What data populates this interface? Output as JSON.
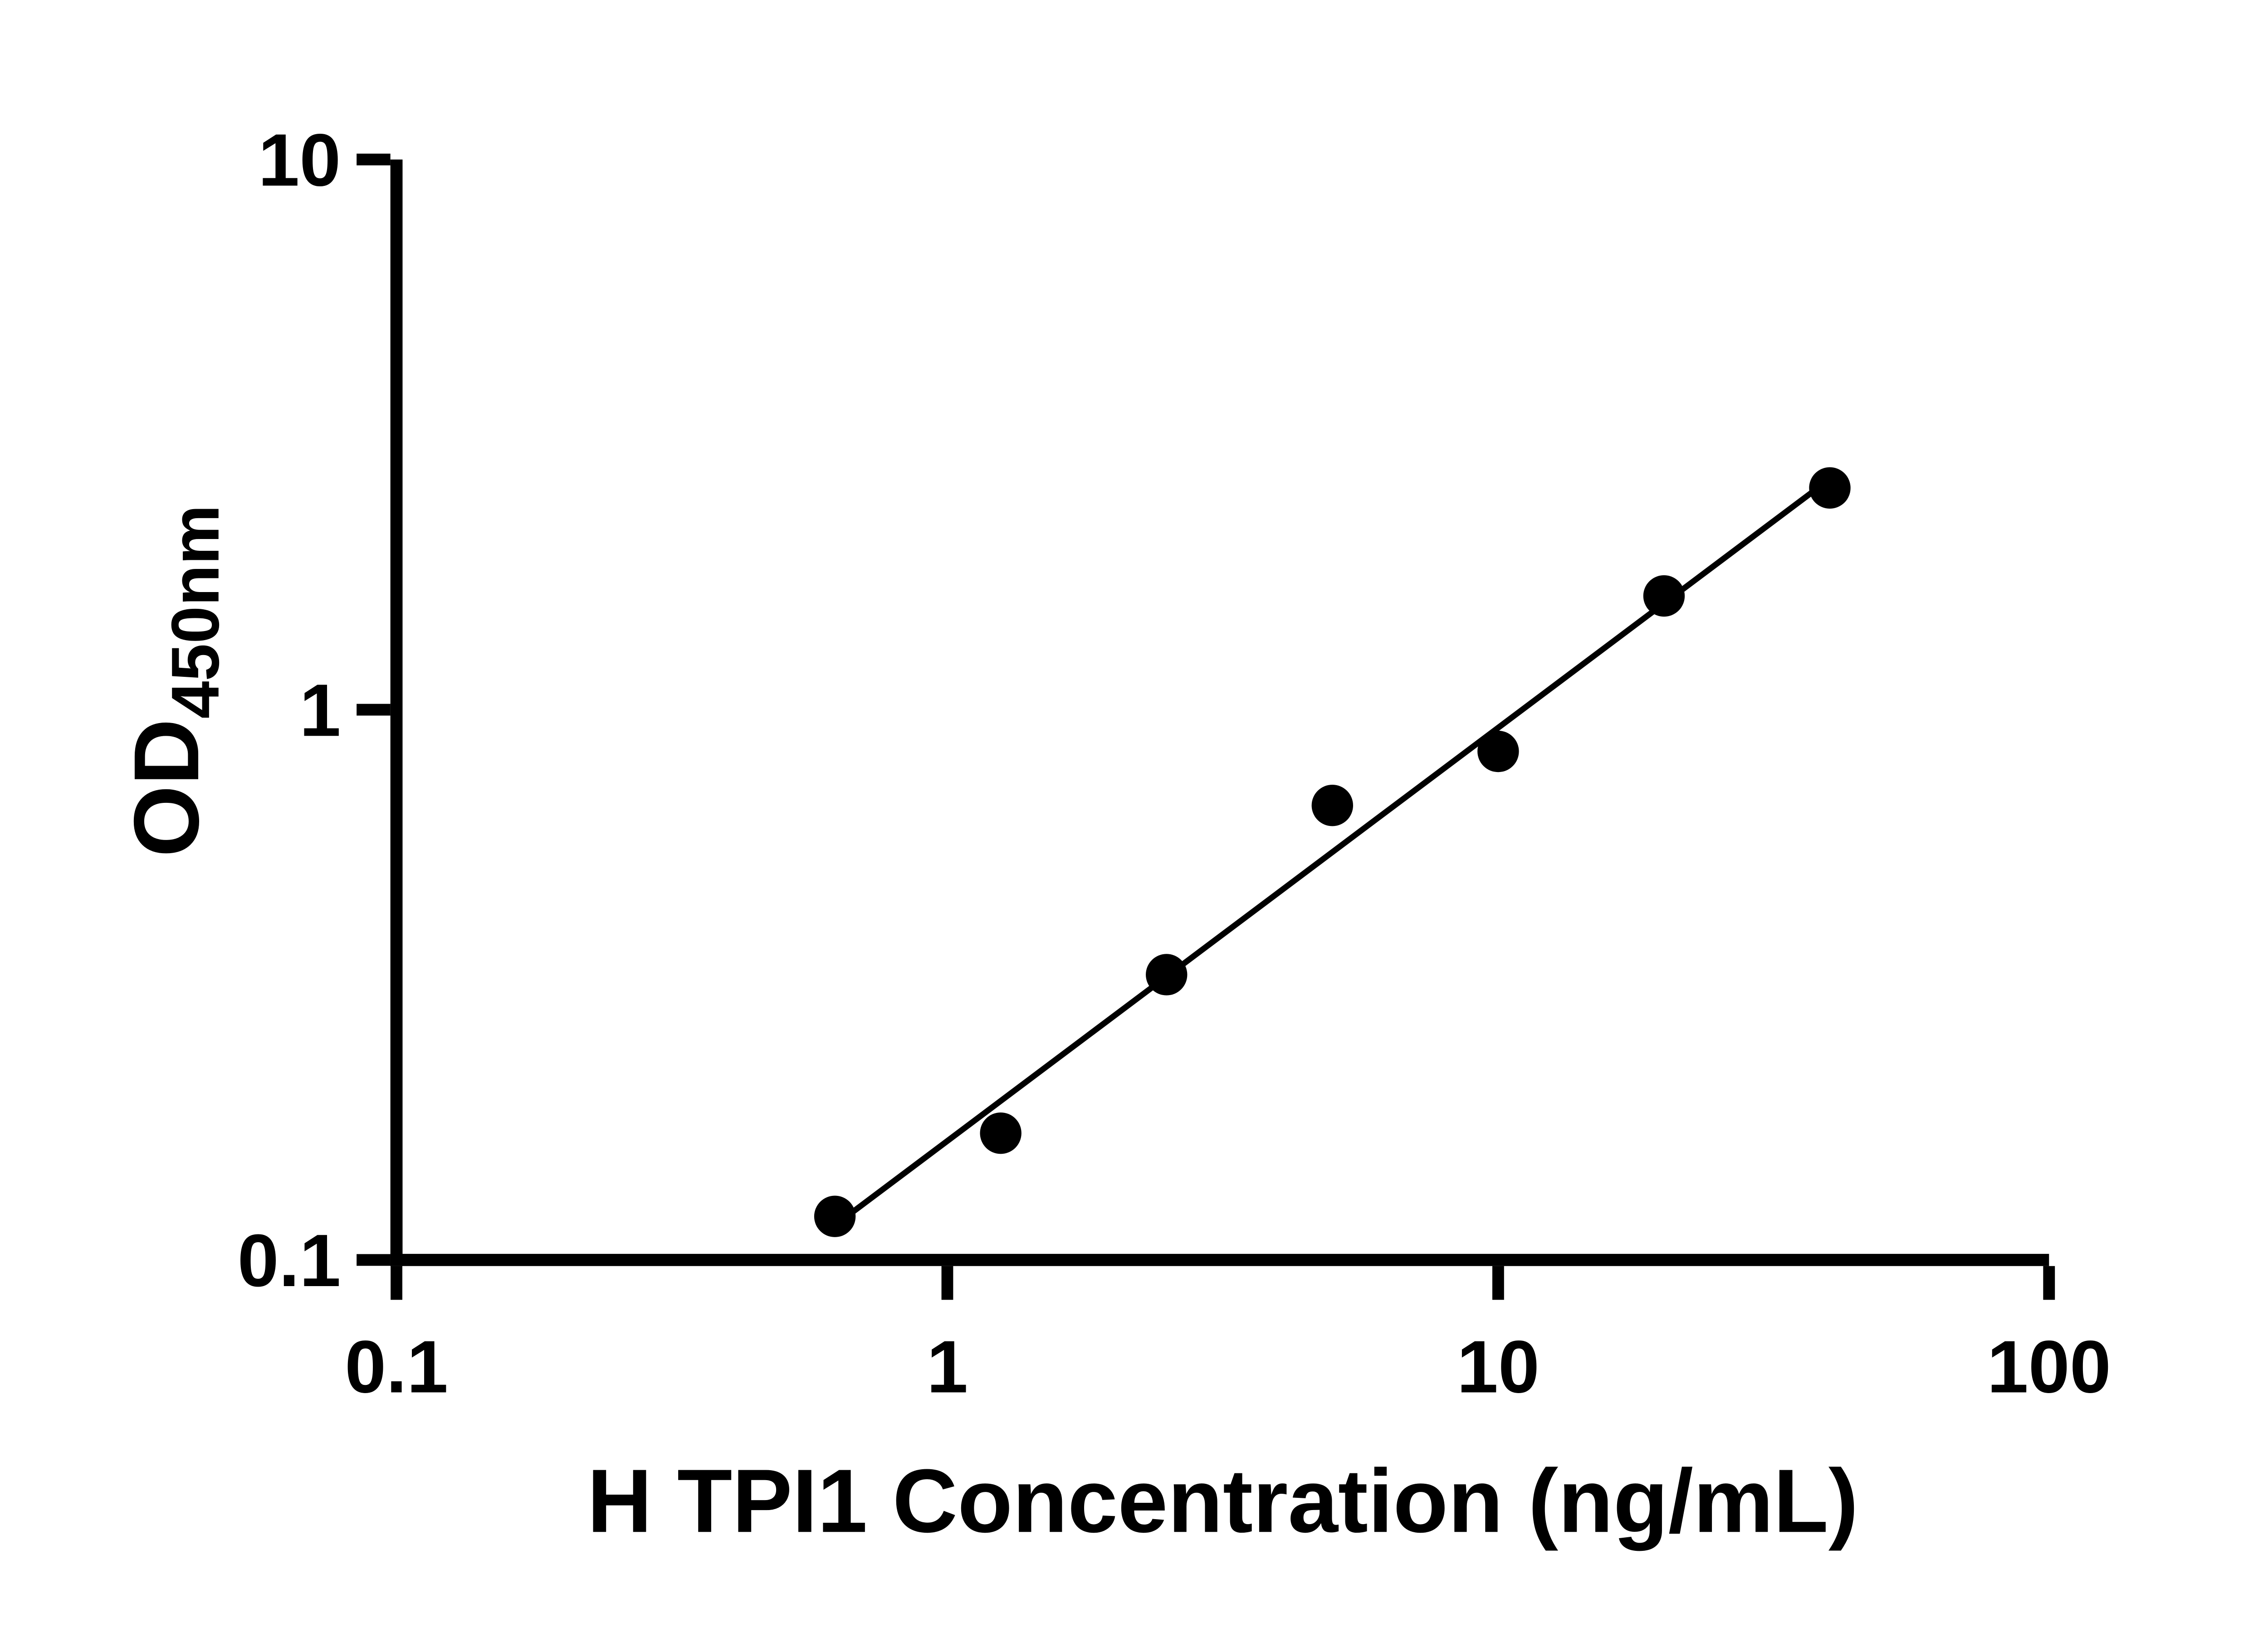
{
  "figure": {
    "background": "#ffffff"
  },
  "chart_data": {
    "type": "scatter",
    "title": "",
    "xlabel": "H TPI1 Concentration (ng/mL)",
    "ylabel": "OD450nm",
    "ylabel_main": "OD",
    "ylabel_sub": "450nm",
    "xscale": "log",
    "yscale": "log",
    "xlim": [
      0.1,
      100
    ],
    "ylim": [
      0.1,
      10
    ],
    "x_tick_values": [
      0.1,
      1,
      10,
      100
    ],
    "x_tick_labels": [
      "0.1",
      "1",
      "10",
      "100"
    ],
    "y_tick_values": [
      0.1,
      1,
      10
    ],
    "y_tick_labels": [
      "0.1",
      "1",
      "10"
    ],
    "x": [
      0.625,
      1.25,
      2.5,
      5,
      10,
      20,
      40
    ],
    "y": [
      0.12,
      0.17,
      0.33,
      0.67,
      0.84,
      1.61,
      2.53
    ],
    "trendline": "straight-line fit in log-log space from first to last point",
    "marker_color": "#000000",
    "line_color": "#000000",
    "axis_color": "#000000",
    "grid": false,
    "legend": null
  }
}
